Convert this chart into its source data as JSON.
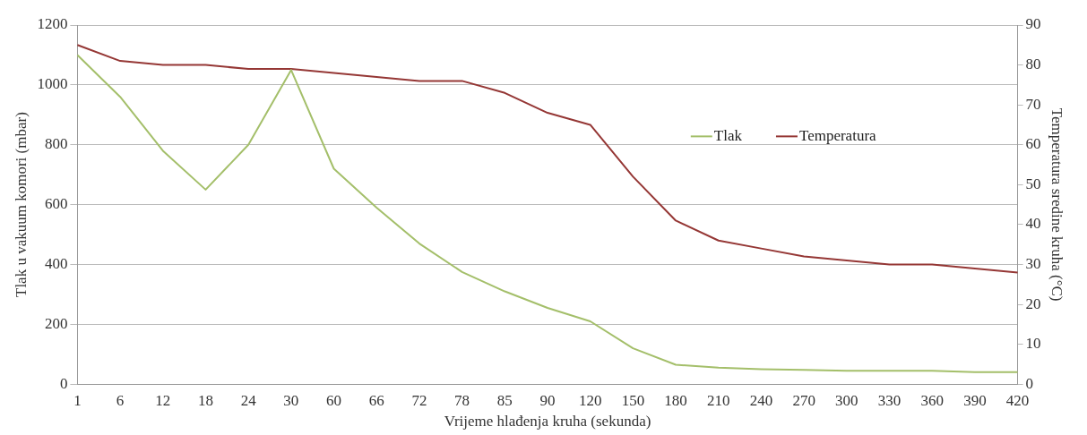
{
  "chart_data": {
    "type": "line",
    "xlabel": "Vrijeme hlađenja kruha (sekunda)",
    "ylabel": "Tlak u vakuum komori (mbar)",
    "y2label": "Temperatura sredine kruha (°C)",
    "categories": [
      "1",
      "6",
      "12",
      "18",
      "24",
      "30",
      "60",
      "66",
      "72",
      "78",
      "85",
      "90",
      "120",
      "150",
      "180",
      "210",
      "240",
      "270",
      "300",
      "330",
      "360",
      "390",
      "420"
    ],
    "series": [
      {
        "name": "Tlak",
        "color": "#a4bf6a",
        "values": [
          1100,
          960,
          780,
          650,
          800,
          1050,
          720,
          590,
          470,
          375,
          310,
          255,
          210,
          120,
          65,
          55,
          50,
          48,
          45,
          45,
          45,
          40,
          40
        ]
      },
      {
        "name": "Temperatura",
        "color": "#953735",
        "axis": "y2",
        "values": [
          85,
          81,
          80,
          80,
          79,
          79,
          78,
          77,
          76,
          76,
          73,
          68,
          65,
          52,
          41,
          36,
          34,
          32,
          31,
          30,
          30,
          29,
          28
        ]
      }
    ],
    "ylim": [
      0,
      1200
    ],
    "yticks": [
      0,
      200,
      400,
      600,
      800,
      1000,
      1200
    ],
    "y2lim": [
      0,
      90
    ],
    "y2ticks": [
      0,
      10,
      20,
      30,
      40,
      50,
      60,
      70,
      80,
      90
    ],
    "grid": "y",
    "legend": "right",
    "marker": "none",
    "line_style": "solid"
  }
}
